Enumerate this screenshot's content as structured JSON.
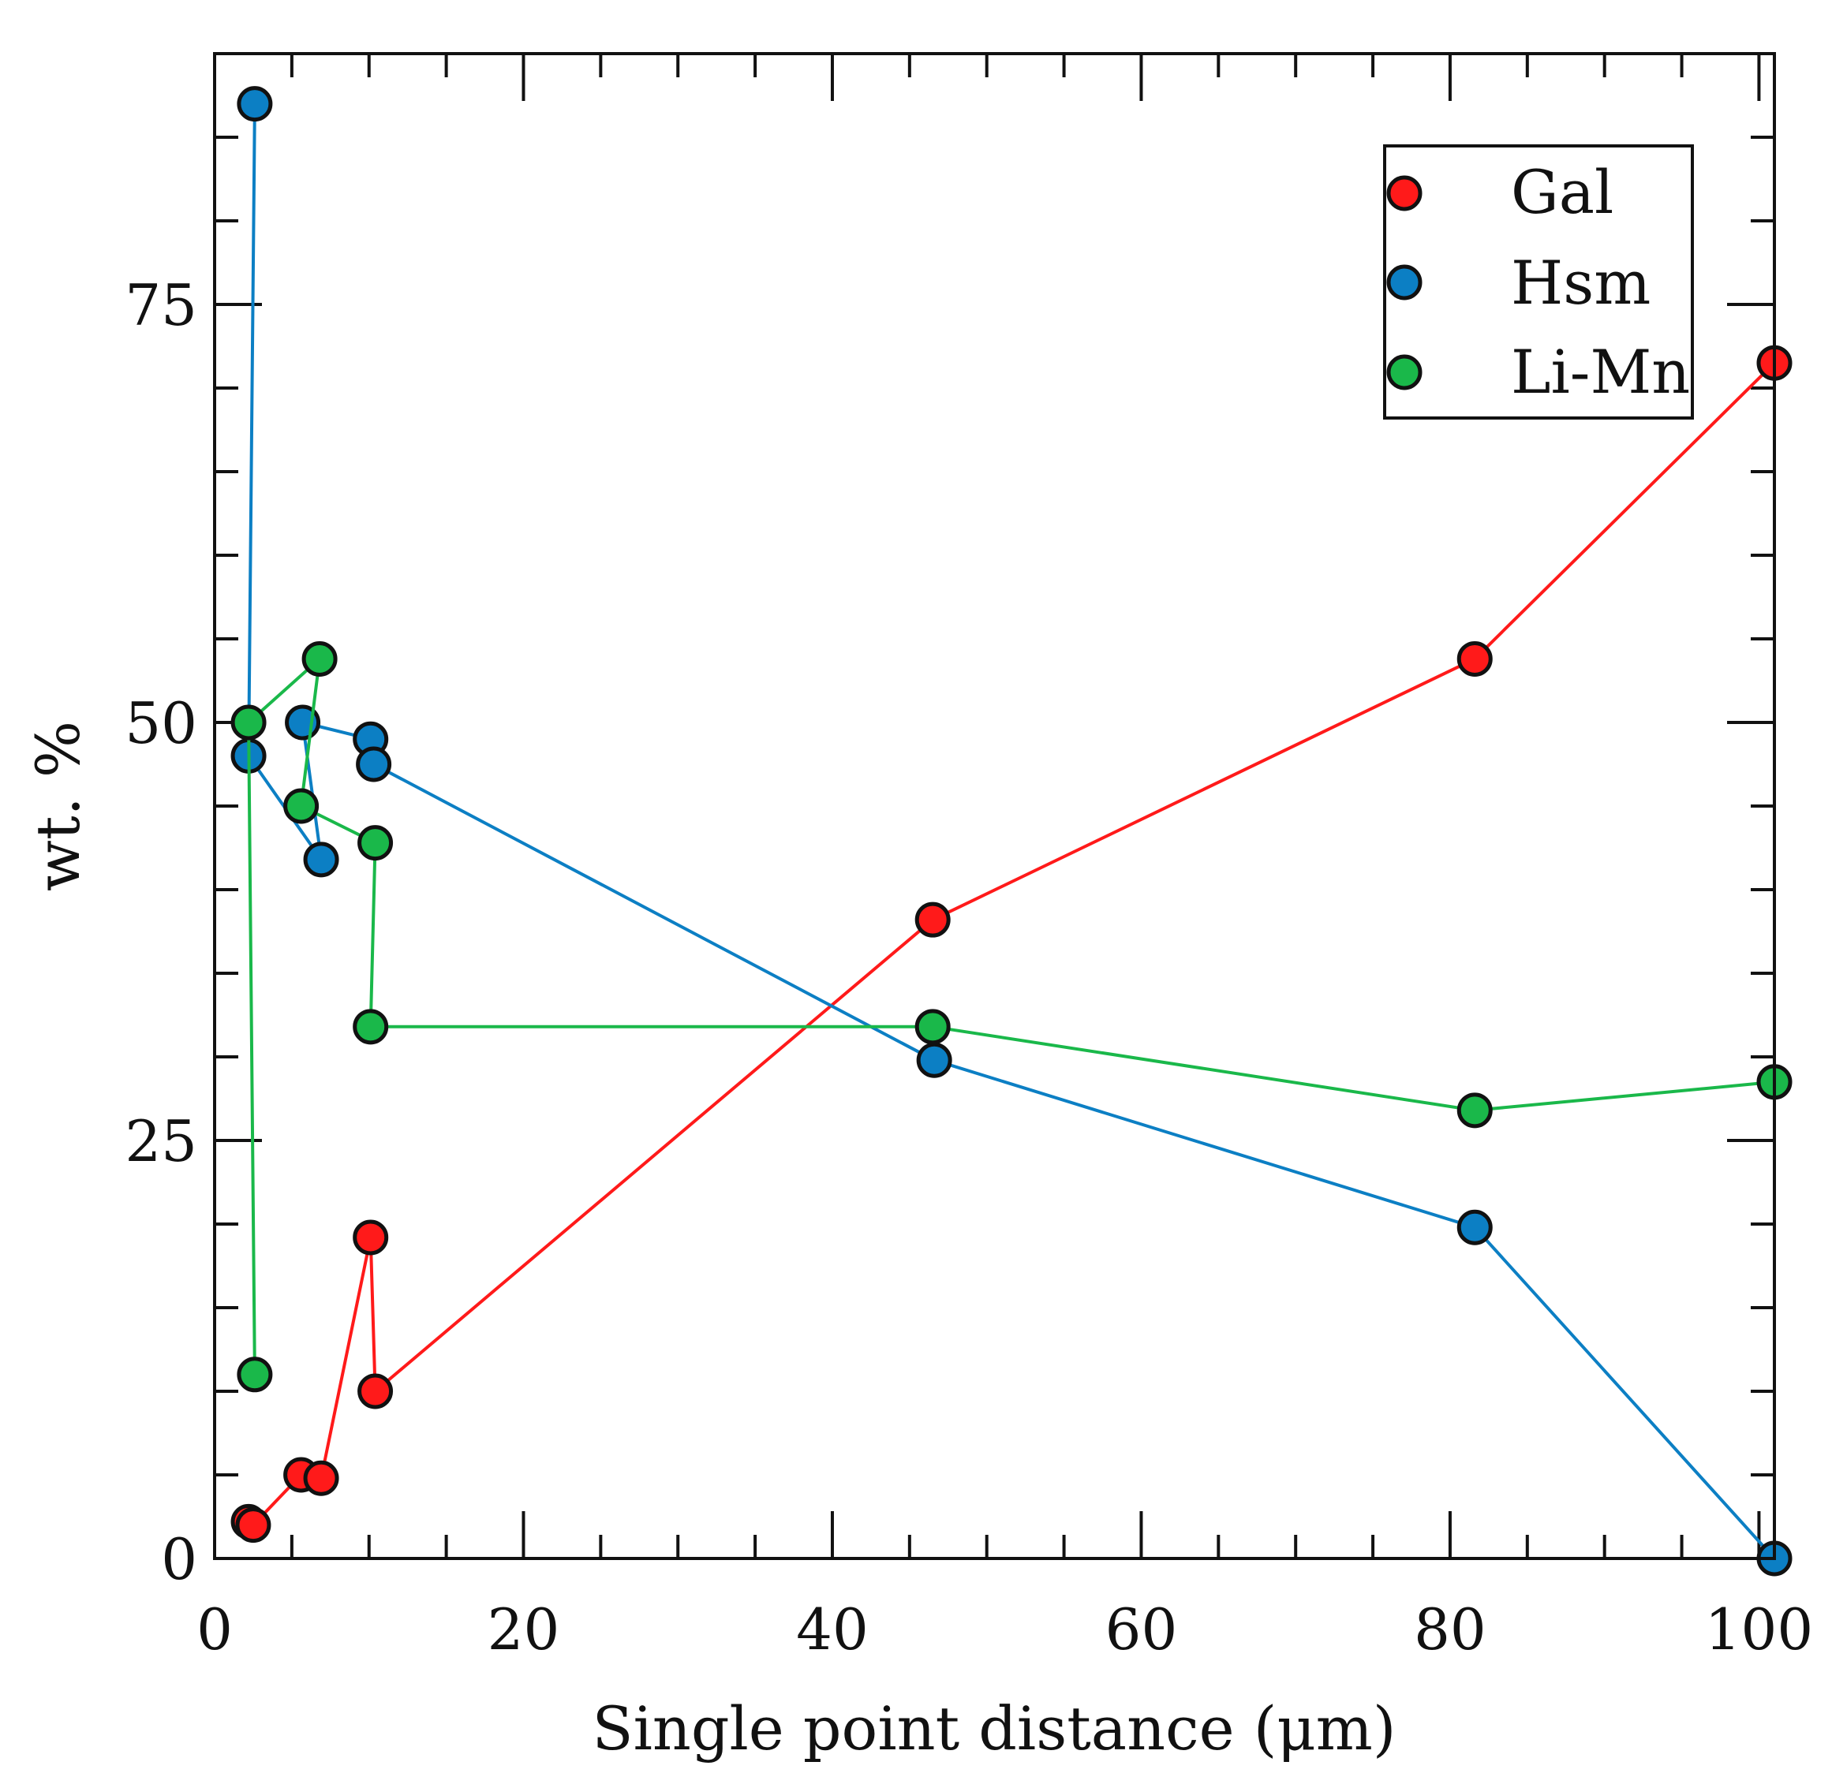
{
  "chart_data": {
    "type": "line",
    "title": "",
    "xlabel": "Single point distance (μm)",
    "ylabel": "wt. %",
    "xlim": [
      0,
      101
    ],
    "ylim": [
      0,
      90
    ],
    "x_ticks": [
      0,
      20,
      40,
      60,
      80,
      100
    ],
    "x_tick_labels": [
      "0",
      "20",
      "40",
      "60",
      "80",
      "100"
    ],
    "y_ticks": [
      0,
      25,
      50,
      75
    ],
    "y_tick_labels": [
      "0",
      "25",
      "50",
      "75"
    ],
    "x_minor_step": 5,
    "y_minor_step": 5,
    "grid": false,
    "legend_position": "top-right",
    "series": [
      {
        "name": "Gal",
        "color": "#ff1a1a",
        "points": [
          [
            2.2,
            2.2
          ],
          [
            2.5,
            2.0
          ],
          [
            5.6,
            5.0
          ],
          [
            6.9,
            4.8
          ],
          [
            10.1,
            19.2
          ],
          [
            10.4,
            10.0
          ],
          [
            46.5,
            38.2
          ],
          [
            81.6,
            53.8
          ],
          [
            101,
            71.5
          ]
        ]
      },
      {
        "name": "Hsm",
        "color": "#0c7fc4",
        "points": [
          [
            2.6,
            87.0
          ],
          [
            2.2,
            48.0
          ],
          [
            6.9,
            41.8
          ],
          [
            5.7,
            50.0
          ],
          [
            10.1,
            49.0
          ],
          [
            10.3,
            47.5
          ],
          [
            46.6,
            29.8
          ],
          [
            81.6,
            19.8
          ],
          [
            101,
            0.0
          ]
        ]
      },
      {
        "name": "Li-Mn",
        "color": "#1ab84a",
        "points": [
          [
            2.6,
            11.0
          ],
          [
            2.2,
            50.0
          ],
          [
            6.8,
            53.8
          ],
          [
            5.6,
            45.0
          ],
          [
            10.4,
            42.8
          ],
          [
            10.1,
            31.8
          ],
          [
            46.5,
            31.8
          ],
          [
            81.6,
            26.8
          ],
          [
            101,
            28.5
          ]
        ]
      }
    ]
  }
}
